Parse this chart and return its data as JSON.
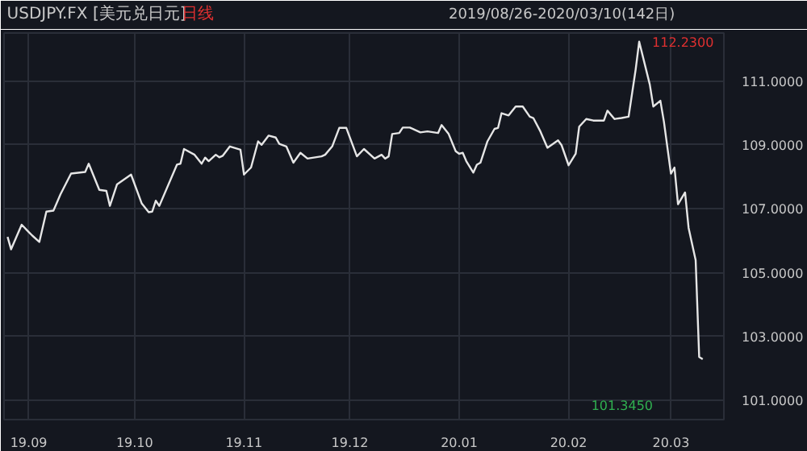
{
  "chart_data": {
    "type": "line",
    "title": "USDJPY.FX [美元兑日元]",
    "subtitle": "日线",
    "annotations": [
      "2019/08/26-2020/03/10(142日)",
      {
        "text": "112.2300",
        "x": "2020-02-21",
        "y": 112.23
      },
      "101.3450"
    ],
    "series": [
      {
        "color": "#e6e6e6",
        "x": [
          "2019-08-26",
          "2019-08-27",
          "2019-08-30",
          "2019-09-01",
          "2019-09-02",
          "2019-09-04",
          "2019-09-06",
          "2019-09-08",
          "2019-09-10",
          "2019-09-13",
          "2019-09-17",
          "2019-09-18",
          "2019-09-21",
          "2019-09-23",
          "2019-09-24",
          "2019-09-26",
          "2019-09-30",
          "2019-10-03",
          "2019-10-05",
          "2019-10-06",
          "2019-10-07",
          "2019-10-08",
          "2019-10-13",
          "2019-10-14",
          "2019-10-15",
          "2019-10-18",
          "2019-10-20",
          "2019-10-21",
          "2019-10-22",
          "2019-10-24",
          "2019-10-25",
          "2019-10-26",
          "2019-10-28",
          "2019-10-31",
          "2019-11-01",
          "2019-11-03",
          "2019-11-05",
          "2019-11-06",
          "2019-11-08",
          "2019-11-10",
          "2019-11-11",
          "2019-11-13",
          "2019-11-15",
          "2019-11-17",
          "2019-11-19",
          "2019-11-23",
          "2019-11-24",
          "2019-11-26",
          "2019-11-28",
          "2019-11-30",
          "2019-12-03",
          "2019-12-05",
          "2019-12-08",
          "2019-12-10",
          "2019-12-11",
          "2019-12-12",
          "2019-12-13",
          "2019-12-15",
          "2019-12-16",
          "2019-12-18",
          "2019-12-21",
          "2019-12-23",
          "2019-12-26",
          "2019-12-27",
          "2019-12-29",
          "2019-12-31",
          "2020-01-01",
          "2020-01-02",
          "2020-01-03",
          "2020-01-05",
          "2020-01-06",
          "2020-01-07",
          "2020-01-09",
          "2020-01-11",
          "2020-01-12",
          "2020-01-13",
          "2020-01-15",
          "2020-01-17",
          "2020-01-19",
          "2020-01-21",
          "2020-01-22",
          "2020-01-24",
          "2020-01-26",
          "2020-01-29",
          "2020-01-30",
          "2020-02-01",
          "2020-02-03",
          "2020-02-04",
          "2020-02-06",
          "2020-02-08",
          "2020-02-11",
          "2020-02-12",
          "2020-02-14",
          "2020-02-16",
          "2020-02-18",
          "2020-02-20",
          "2020-02-21",
          "2020-02-24",
          "2020-02-25",
          "2020-02-27",
          "2020-02-28",
          "2020-03-01",
          "2020-03-02",
          "2020-03-03",
          "2020-03-05",
          "2020-03-06",
          "2020-03-08",
          "2020-03-09",
          "2020-03-10"
        ],
        "values": [
          106.12,
          105.73,
          106.5,
          106.27,
          106.16,
          105.96,
          106.91,
          106.94,
          107.45,
          108.1,
          108.15,
          108.41,
          107.59,
          107.56,
          107.09,
          107.76,
          108.07,
          107.17,
          106.89,
          106.91,
          107.25,
          107.09,
          108.38,
          108.41,
          108.87,
          108.69,
          108.41,
          108.6,
          108.49,
          108.69,
          108.61,
          108.66,
          108.95,
          108.85,
          108.07,
          108.29,
          109.11,
          109.0,
          109.29,
          109.23,
          109.03,
          108.95,
          108.44,
          108.75,
          108.57,
          108.64,
          108.69,
          108.95,
          109.53,
          109.53,
          108.64,
          108.87,
          108.57,
          108.69,
          108.57,
          108.64,
          109.34,
          109.37,
          109.54,
          109.54,
          109.39,
          109.42,
          109.37,
          109.62,
          109.34,
          108.8,
          108.72,
          108.75,
          108.49,
          108.13,
          108.38,
          108.44,
          109.11,
          109.5,
          109.53,
          109.99,
          109.92,
          110.2,
          110.2,
          109.88,
          109.84,
          109.42,
          108.91,
          109.14,
          108.99,
          108.36,
          108.72,
          109.57,
          109.81,
          109.76,
          109.76,
          110.07,
          109.81,
          109.84,
          109.88,
          111.36,
          112.23,
          110.89,
          110.2,
          110.38,
          109.73,
          108.1,
          108.29,
          107.14,
          107.51,
          106.4,
          105.39,
          102.36,
          102.29
        ]
      }
    ],
    "xlim": [
      "2019-08-25",
      "2020-03-16"
    ],
    "xticks": [
      {
        "value": "2019-09-01",
        "label": "19.09"
      },
      {
        "value": "2019-10-01",
        "label": "19.10"
      },
      {
        "value": "2019-11-01",
        "label": "19.11"
      },
      {
        "value": "2019-12-01",
        "label": "19.12"
      },
      {
        "value": "2020-01-01",
        "label": "20.01"
      },
      {
        "value": "2020-02-01",
        "label": "20.02"
      },
      {
        "value": "2020-03-01",
        "label": "20.03"
      }
    ],
    "ylim": [
      100.4,
      112.5
    ],
    "yticks": [
      {
        "value": 101,
        "label": "101.0000"
      },
      {
        "value": 103,
        "label": "103.0000"
      },
      {
        "value": 105,
        "label": "105.0000"
      },
      {
        "value": 107,
        "label": "107.0000"
      },
      {
        "value": 109,
        "label": "109.0000"
      },
      {
        "value": 111,
        "label": "111.0000"
      }
    ],
    "grid": true,
    "marker": "none",
    "line_style": "solid"
  }
}
